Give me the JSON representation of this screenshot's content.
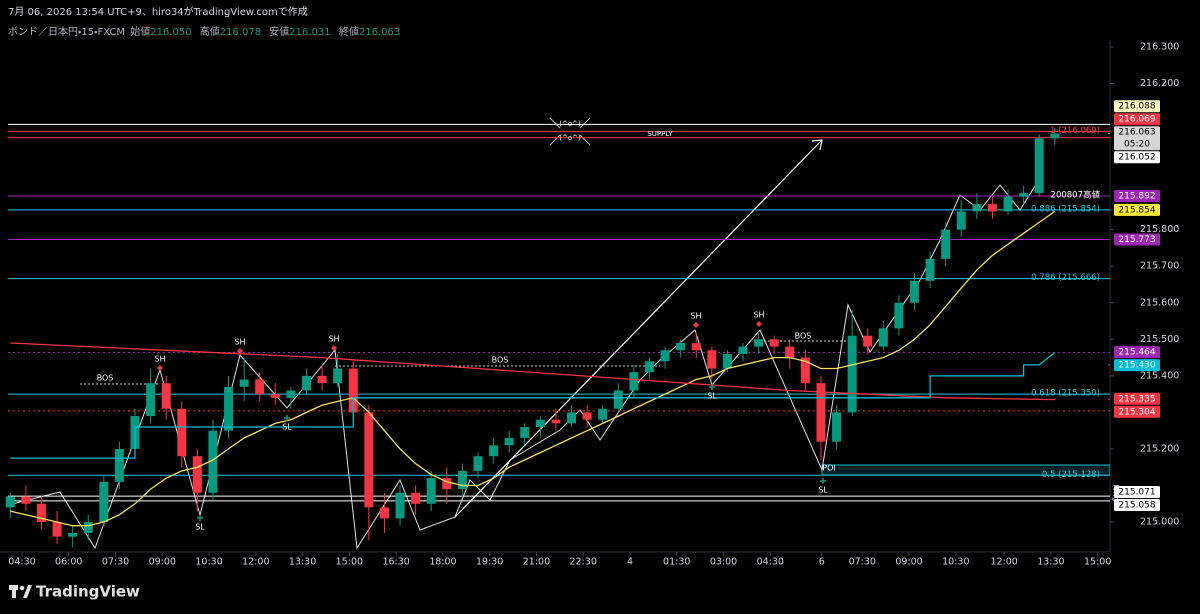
{
  "header": {
    "caption": "7月 06, 2026 13:54 UTC+9、hiro34がTradingView.comで作成",
    "symbol": "ボンド／日本円・15・FXCM",
    "ohlc": [
      {
        "name": "始値",
        "value": "216.050"
      },
      {
        "name": "高値",
        "value": "216.078"
      },
      {
        "name": "安値",
        "value": "216.031"
      },
      {
        "name": "終値",
        "value": "216.063"
      }
    ]
  },
  "chart_data": {
    "type": "candlestick",
    "up_color": "#089981",
    "down_color": "#f23645",
    "xlim": [
      -0.66,
      70.54
    ],
    "ylim": [
      214.918,
      216.319
    ],
    "xticks": [
      {
        "value": 0.75,
        "label": "04:30"
      },
      {
        "value": 3.75,
        "label": "06:00"
      },
      {
        "value": 6.75,
        "label": "07:30"
      },
      {
        "value": 9.75,
        "label": "09:00"
      },
      {
        "value": 12.75,
        "label": "10:30"
      },
      {
        "value": 15.75,
        "label": "12:00"
      },
      {
        "value": 18.75,
        "label": "13:30"
      },
      {
        "value": 21.75,
        "label": "15:00"
      },
      {
        "value": 24.75,
        "label": "16:30"
      },
      {
        "value": 27.75,
        "label": "18:00"
      },
      {
        "value": 30.75,
        "label": "19:30"
      },
      {
        "value": 33.75,
        "label": "21:00"
      },
      {
        "value": 36.75,
        "label": "22:30"
      },
      {
        "value": 39.75,
        "label": "4"
      },
      {
        "value": 42.75,
        "label": "01:30"
      },
      {
        "value": 45.75,
        "label": "03:00"
      },
      {
        "value": 48.75,
        "label": "04:30"
      },
      {
        "value": 52.05,
        "label": "6"
      },
      {
        "value": 54.65,
        "label": "07:30"
      },
      {
        "value": 57.65,
        "label": "09:00"
      },
      {
        "value": 60.65,
        "label": "10:30"
      },
      {
        "value": 63.75,
        "label": "12:00"
      },
      {
        "value": 66.75,
        "label": "13:30"
      },
      {
        "value": 69.75,
        "label": "15:00"
      }
    ],
    "yticks": [
      {
        "value": 216.3,
        "label": "216.300"
      },
      {
        "value": 216.2,
        "label": "216.200"
      },
      {
        "value": 215.8,
        "label": "215.800"
      },
      {
        "value": 215.7,
        "label": "215.700"
      },
      {
        "value": 215.6,
        "label": "215.600"
      },
      {
        "value": 215.5,
        "label": "215.500"
      },
      {
        "value": 215.4,
        "label": "215.400"
      },
      {
        "value": 215.2,
        "label": "215.200"
      },
      {
        "value": 215.0,
        "label": "215.000"
      }
    ],
    "candles": [
      [
        215.04,
        215.08,
        215.01,
        215.07
      ],
      [
        215.07,
        215.1,
        215.03,
        215.05
      ],
      [
        215.05,
        215.07,
        214.98,
        215.0
      ],
      [
        215.0,
        215.03,
        214.94,
        214.96
      ],
      [
        214.96,
        214.99,
        214.93,
        214.97
      ],
      [
        214.97,
        215.02,
        214.95,
        215.0
      ],
      [
        215.0,
        215.13,
        214.99,
        215.11
      ],
      [
        215.11,
        215.22,
        215.09,
        215.2
      ],
      [
        215.2,
        215.31,
        215.18,
        215.29
      ],
      [
        215.29,
        215.42,
        215.27,
        215.38
      ],
      [
        215.38,
        215.4,
        215.28,
        215.31
      ],
      [
        215.31,
        215.33,
        215.15,
        215.18
      ],
      [
        215.18,
        215.2,
        215.03,
        215.08
      ],
      [
        215.08,
        215.28,
        215.06,
        215.25
      ],
      [
        215.25,
        215.4,
        215.23,
        215.37
      ],
      [
        215.37,
        215.45,
        215.33,
        215.39
      ],
      [
        215.39,
        215.41,
        215.33,
        215.35
      ],
      [
        215.35,
        215.38,
        215.32,
        215.34
      ],
      [
        215.34,
        215.37,
        215.31,
        215.36
      ],
      [
        215.36,
        215.42,
        215.35,
        215.4
      ],
      [
        215.4,
        215.43,
        215.36,
        215.38
      ],
      [
        215.38,
        215.46,
        215.37,
        215.42
      ],
      [
        215.42,
        215.44,
        215.28,
        215.3
      ],
      [
        215.3,
        215.32,
        214.95,
        215.04
      ],
      [
        215.04,
        215.08,
        214.97,
        215.01
      ],
      [
        215.01,
        215.1,
        214.99,
        215.08
      ],
      [
        215.08,
        215.1,
        215.02,
        215.05
      ],
      [
        215.05,
        215.14,
        215.03,
        215.12
      ],
      [
        215.12,
        215.15,
        215.05,
        215.09
      ],
      [
        215.09,
        215.16,
        215.07,
        215.14
      ],
      [
        215.14,
        215.19,
        215.12,
        215.18
      ],
      [
        215.18,
        215.23,
        215.16,
        215.21
      ],
      [
        215.21,
        215.25,
        215.19,
        215.23
      ],
      [
        215.23,
        215.27,
        215.21,
        215.26
      ],
      [
        215.26,
        215.29,
        215.23,
        215.28
      ],
      [
        215.28,
        215.31,
        215.25,
        215.27
      ],
      [
        215.27,
        215.32,
        215.26,
        215.3
      ],
      [
        215.3,
        215.32,
        215.26,
        215.28
      ],
      [
        215.28,
        215.32,
        215.27,
        215.31
      ],
      [
        215.31,
        215.38,
        215.3,
        215.36
      ],
      [
        215.36,
        215.43,
        215.34,
        215.41
      ],
      [
        215.41,
        215.45,
        215.39,
        215.44
      ],
      [
        215.44,
        215.48,
        215.42,
        215.47
      ],
      [
        215.47,
        215.5,
        215.45,
        215.49
      ],
      [
        215.49,
        215.52,
        215.45,
        215.47
      ],
      [
        215.47,
        215.48,
        215.39,
        215.42
      ],
      [
        215.42,
        215.47,
        215.41,
        215.46
      ],
      [
        215.46,
        215.49,
        215.44,
        215.48
      ],
      [
        215.48,
        215.52,
        215.46,
        215.5
      ],
      [
        215.5,
        215.51,
        215.46,
        215.48
      ],
      [
        215.48,
        215.5,
        215.42,
        215.45
      ],
      [
        215.45,
        215.47,
        215.36,
        215.38
      ],
      [
        215.38,
        215.4,
        215.17,
        215.22
      ],
      [
        215.22,
        215.32,
        215.2,
        215.3
      ],
      [
        215.3,
        215.58,
        215.29,
        215.51
      ],
      [
        215.51,
        215.53,
        215.46,
        215.48
      ],
      [
        215.48,
        215.55,
        215.47,
        215.53
      ],
      [
        215.53,
        215.62,
        215.51,
        215.6
      ],
      [
        215.6,
        215.68,
        215.58,
        215.66
      ],
      [
        215.66,
        215.74,
        215.64,
        215.72
      ],
      [
        215.72,
        215.82,
        215.7,
        215.8
      ],
      [
        215.8,
        215.88,
        215.78,
        215.85
      ],
      [
        215.85,
        215.9,
        215.83,
        215.87
      ],
      [
        215.87,
        215.89,
        215.83,
        215.85
      ],
      [
        215.85,
        215.91,
        215.84,
        215.89
      ],
      [
        215.89,
        215.92,
        215.87,
        215.9
      ],
      [
        215.9,
        216.06,
        215.89,
        216.05
      ],
      [
        216.05,
        216.078,
        216.031,
        216.063
      ]
    ],
    "series": [
      {
        "color": "#f5e15a",
        "values": [
          215.03,
          215.02,
          215.01,
          215.0,
          214.99,
          214.99,
          215.0,
          215.02,
          215.05,
          215.09,
          215.12,
          215.14,
          215.15,
          215.17,
          215.2,
          215.23,
          215.25,
          215.27,
          215.28,
          215.3,
          215.32,
          215.33,
          215.34,
          215.3,
          215.25,
          215.2,
          215.16,
          215.13,
          215.11,
          215.1,
          215.1,
          215.12,
          215.15,
          215.17,
          215.19,
          215.21,
          215.23,
          215.25,
          215.27,
          215.29,
          215.31,
          215.33,
          215.35,
          215.37,
          215.39,
          215.4,
          215.42,
          215.43,
          215.44,
          215.45,
          215.45,
          215.44,
          215.42,
          215.42,
          215.43,
          215.44,
          215.45,
          215.47,
          215.5,
          215.54,
          215.59,
          215.64,
          215.69,
          215.73,
          215.76,
          215.79,
          215.82,
          215.85
        ]
      },
      {
        "color": "#f23645",
        "x": [
          0,
          10,
          20,
          30,
          40,
          50,
          60,
          67
        ],
        "values": [
          215.49,
          215.47,
          215.45,
          215.42,
          215.39,
          215.36,
          215.34,
          215.335
        ]
      },
      {
        "color": "#00bcd4",
        "x": [
          0,
          8,
          8,
          22,
          22,
          59,
          59,
          65,
          65,
          66,
          67
        ],
        "values": [
          215.175,
          215.175,
          215.26,
          215.26,
          215.34,
          215.34,
          215.4,
          215.4,
          215.43,
          215.43,
          215.464
        ]
      }
    ],
    "levels": [
      {
        "value": 216.088,
        "color": "#ffffff",
        "style": "solid",
        "badge": "#fff9c4"
      },
      {
        "value": 216.069,
        "color": "#f23645",
        "style": "solid",
        "badge": "#f23645",
        "fib": "1 (216.069)"
      },
      {
        "value": 216.063,
        "color": "#9e9e9e",
        "style": "none",
        "badge": "#d6d6d6",
        "countdown": "05:20"
      },
      {
        "value": 216.052,
        "color": "#f23645",
        "style": "solid",
        "badge": "#ffffff"
      },
      {
        "value": 215.892,
        "color": "#9c27b0",
        "style": "solid",
        "badge": "#9c27b0",
        "note": "200807高値"
      },
      {
        "value": 215.854,
        "color": "#26c6da",
        "style": "solid",
        "badge": "#ffeb3b",
        "fib": "0.886 (215.854)"
      },
      {
        "value": 215.773,
        "color": "#9c27b0",
        "style": "solid",
        "badge": "#9c27b0"
      },
      {
        "value": 215.666,
        "color": "#26c6da",
        "style": "solid",
        "fib": "0.786 (215.666)"
      },
      {
        "value": 215.464,
        "color": "#9c27b0",
        "style": "dotted",
        "badge": "#9c27b0"
      },
      {
        "value": 215.43,
        "label": "215.430",
        "color": "#00bcd4",
        "style": "none",
        "badge": "#00bcd4"
      },
      {
        "value": 215.35,
        "color": "#26c6da",
        "style": "solid",
        "fib": "0.618 (215.350)"
      },
      {
        "value": 215.335,
        "color": "#f23645",
        "style": "none",
        "badge": "#f23645"
      },
      {
        "value": 215.304,
        "color": "#f23645",
        "style": "dotted",
        "badge": "#f23645"
      },
      {
        "value": 215.128,
        "color": "#26c6da",
        "style": "solid",
        "fib": "0.5 (215.128)"
      },
      {
        "value": 215.071,
        "color": "#ffffff",
        "style": "solid",
        "badge": "#ffffff"
      },
      {
        "value": 215.058,
        "color": "#ffffff",
        "style": "solid",
        "badge": "#ffffff"
      }
    ],
    "annotations": [
      "BOS",
      "SH",
      "SH",
      "SH",
      "BOS",
      "SH",
      "SH",
      "BOS",
      "SL",
      "SL",
      "SL",
      "SL",
      "SUPPLY",
      "POI",
      "(^o^)",
      "(^o^)"
    ],
    "position_label": "long"
  },
  "footer": {
    "brand": "TradingView"
  }
}
